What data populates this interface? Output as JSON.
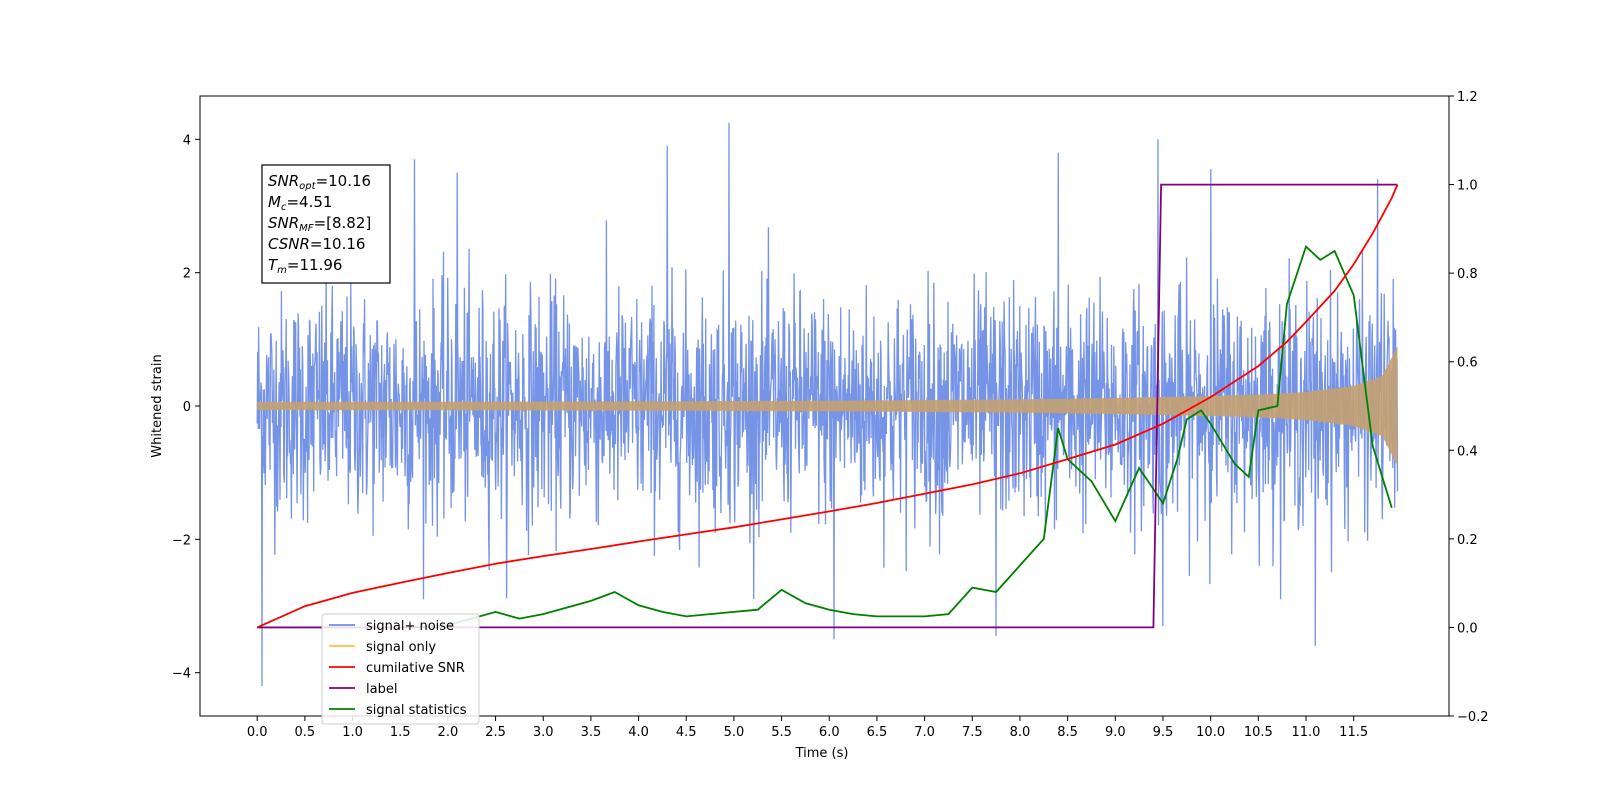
{
  "chart_data": {
    "type": "line",
    "title": "",
    "xlabel": "Time (s)",
    "ylabel": "Whitened strain",
    "xlim": [
      -0.6,
      12.5
    ],
    "ylim": [
      -4.65,
      4.65
    ],
    "y2lim": [
      -0.2,
      1.2
    ],
    "x_ticks": [
      0.0,
      0.5,
      1.0,
      1.5,
      2.0,
      2.5,
      3.0,
      3.5,
      4.0,
      4.5,
      5.0,
      5.5,
      6.0,
      6.5,
      7.0,
      7.5,
      8.0,
      8.5,
      9.0,
      9.5,
      10.0,
      10.5,
      11.0,
      11.5
    ],
    "x_tick_labels": [
      "0.0",
      "0.5",
      "1.0",
      "1.5",
      "2.0",
      "2.5",
      "3.0",
      "3.5",
      "4.0",
      "4.5",
      "5.0",
      "5.5",
      "6.0",
      "6.5",
      "7.0",
      "7.5",
      "8.0",
      "8.5",
      "9.0",
      "9.5",
      "10.0",
      "10.5",
      "11.0",
      "11.5"
    ],
    "y_ticks": [
      -4,
      -2,
      0,
      2,
      4
    ],
    "y_tick_labels": [
      "−4",
      "−2",
      "0",
      "2",
      "4"
    ],
    "y2_ticks": [
      -0.2,
      0.0,
      0.2,
      0.4,
      0.6,
      0.8,
      1.0,
      1.2
    ],
    "y2_tick_labels": [
      "−0.2",
      "0.0",
      "0.2",
      "0.4",
      "0.6",
      "0.8",
      "1.0",
      "1.2"
    ],
    "grid": false,
    "legend_position": "lower-left",
    "legend": [
      {
        "label": "signal+ noise",
        "color": "#6f8ee6"
      },
      {
        "label": "signal only",
        "color": "#ffbf4d"
      },
      {
        "label": "cumilative SNR",
        "color": "#ff0000"
      },
      {
        "label": "label",
        "color": "#800080"
      },
      {
        "label": "signal statistics",
        "color": "#008000"
      }
    ],
    "annotation": {
      "lines": [
        {
          "name": "SNR",
          "sub": "opt",
          "value": "=10.16"
        },
        {
          "name": "M",
          "sub": "c",
          "value": "=4.51"
        },
        {
          "name": "SNR",
          "sub": "MF",
          "value": "=[8.82]"
        },
        {
          "name": "CSNR",
          "sub": "",
          "value": "=10.16"
        },
        {
          "name": "T",
          "sub": "m",
          "value": "=11.96"
        }
      ]
    },
    "series": [
      {
        "name": "signal+ noise",
        "axis": "left",
        "color": "#6f8ee6",
        "kind": "noise",
        "x_range": [
          0.0,
          11.96
        ],
        "typical_envelope": [
          -2.0,
          2.0
        ],
        "peaks": [
          {
            "x": 0.05,
            "y": -4.2
          },
          {
            "x": 1.65,
            "y": 3.7
          },
          {
            "x": 2.1,
            "y": 3.5
          },
          {
            "x": 4.3,
            "y": 3.9
          },
          {
            "x": 4.95,
            "y": 4.25
          },
          {
            "x": 6.05,
            "y": -3.5
          },
          {
            "x": 7.75,
            "y": -3.45
          },
          {
            "x": 8.4,
            "y": 3.8
          },
          {
            "x": 9.45,
            "y": 4.0
          },
          {
            "x": 9.5,
            "y": -3.3
          },
          {
            "x": 10.0,
            "y": 3.55
          },
          {
            "x": 11.1,
            "y": -3.6
          },
          {
            "x": 11.75,
            "y": 3.4
          }
        ]
      },
      {
        "name": "signal only",
        "axis": "left",
        "color": "#c4a070",
        "kind": "chirp",
        "x": [
          0,
          2,
          4,
          6,
          8,
          9,
          10,
          10.5,
          11,
          11.5,
          11.8,
          11.96
        ],
        "amplitude": [
          0.06,
          0.065,
          0.07,
          0.08,
          0.1,
          0.12,
          0.15,
          0.17,
          0.21,
          0.3,
          0.45,
          0.9
        ]
      },
      {
        "name": "cumilative SNR",
        "axis": "right",
        "color": "#ff0000",
        "x": [
          0,
          0.5,
          1,
          1.5,
          2,
          2.5,
          3,
          3.5,
          4,
          4.5,
          5,
          5.5,
          6,
          6.5,
          7,
          7.5,
          8,
          8.5,
          9,
          9.5,
          10,
          10.5,
          10.8,
          11,
          11.3,
          11.5,
          11.7,
          11.8,
          11.9,
          11.96
        ],
        "values": [
          0.0,
          0.048,
          0.078,
          0.101,
          0.123,
          0.144,
          0.161,
          0.177,
          0.194,
          0.21,
          0.226,
          0.244,
          0.262,
          0.281,
          0.302,
          0.323,
          0.348,
          0.38,
          0.413,
          0.46,
          0.52,
          0.59,
          0.645,
          0.69,
          0.76,
          0.82,
          0.89,
          0.93,
          0.97,
          1.0
        ]
      },
      {
        "name": "label",
        "axis": "right",
        "color": "#800080",
        "x": [
          0,
          9.4,
          9.48,
          11.96
        ],
        "values": [
          0,
          0,
          1,
          1
        ]
      },
      {
        "name": "signal statistics",
        "axis": "right",
        "color": "#008000",
        "x": [
          0,
          0.5,
          1,
          1.5,
          2,
          2.5,
          2.75,
          3,
          3.25,
          3.5,
          3.75,
          4.0,
          4.25,
          4.5,
          5.0,
          5.25,
          5.5,
          5.75,
          6.0,
          6.25,
          6.5,
          7.0,
          7.25,
          7.5,
          7.75,
          8.0,
          8.25,
          8.4,
          8.5,
          8.75,
          9.0,
          9.25,
          9.5,
          9.65,
          9.75,
          9.9,
          10.0,
          10.25,
          10.4,
          10.5,
          10.7,
          10.8,
          11.0,
          11.15,
          11.3,
          11.5,
          11.7,
          11.9
        ],
        "values": [
          0.0,
          0.0,
          0.0,
          0.0,
          0.005,
          0.035,
          0.02,
          0.03,
          0.045,
          0.06,
          0.08,
          0.05,
          0.035,
          0.025,
          0.035,
          0.04,
          0.085,
          0.055,
          0.04,
          0.03,
          0.025,
          0.025,
          0.03,
          0.09,
          0.08,
          0.14,
          0.2,
          0.45,
          0.38,
          0.33,
          0.24,
          0.36,
          0.28,
          0.38,
          0.47,
          0.49,
          0.46,
          0.37,
          0.34,
          0.49,
          0.5,
          0.73,
          0.86,
          0.83,
          0.85,
          0.75,
          0.41,
          0.27
        ]
      }
    ]
  }
}
